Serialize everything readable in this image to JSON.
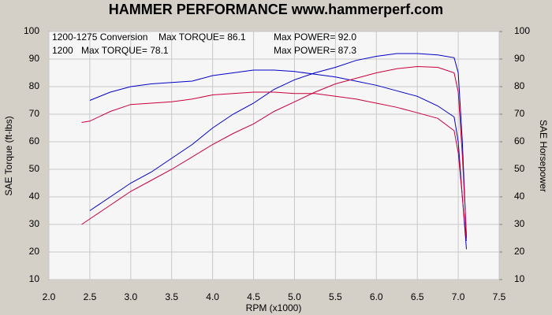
{
  "chart_data": {
    "type": "line",
    "title": "HAMMER PERFORMANCE www.hammerperf.com",
    "x_label": "RPM (x1000)",
    "y_label": "SAE Torque (ft-lbs)",
    "y2_label": "SAE Horsepower",
    "xlim": [
      2.0,
      7.5
    ],
    "xticks": [
      {
        "value": 2.0,
        "label": "2.0"
      },
      {
        "value": 2.5,
        "label": "2.5"
      },
      {
        "value": 3.0,
        "label": "3.0"
      },
      {
        "value": 3.5,
        "label": "3.5"
      },
      {
        "value": 4.0,
        "label": "4.0"
      },
      {
        "value": 4.5,
        "label": "4.5"
      },
      {
        "value": 5.0,
        "label": "5.0"
      },
      {
        "value": 5.5,
        "label": "5.5"
      },
      {
        "value": 6.0,
        "label": "6.0"
      },
      {
        "value": 6.5,
        "label": "6.5"
      },
      {
        "value": 7.0,
        "label": "7.0"
      },
      {
        "value": 7.5,
        "label": "7.5"
      }
    ],
    "ylim": [
      10,
      100
    ],
    "yticks": [
      10,
      20,
      30,
      40,
      50,
      60,
      70,
      80,
      90,
      100
    ],
    "y2lim": [
      10,
      100
    ],
    "y2ticks": [
      10,
      20,
      30,
      40,
      50,
      60,
      70,
      80,
      90,
      100
    ],
    "grid": true,
    "series": [
      {
        "name": "1200-1275 Conversion",
        "color": "#0000c8",
        "max_torque_label": "Max TORQUE= 86.1",
        "max_power_label": "Max POWER= 92.0",
        "x": [
          2.5,
          2.75,
          3.0,
          3.25,
          3.5,
          3.75,
          4.0,
          4.25,
          4.5,
          4.75,
          5.0,
          5.25,
          5.5,
          5.75,
          6.0,
          6.25,
          6.5,
          6.75,
          6.95,
          7.0,
          7.05,
          7.1
        ],
        "torque": [
          75,
          78,
          80,
          81,
          81.5,
          82,
          84,
          85,
          86,
          86,
          85.5,
          84.5,
          83.5,
          82,
          80.5,
          78.5,
          76.5,
          73,
          69,
          60,
          40,
          21
        ],
        "power": [
          35,
          40,
          45,
          49,
          54,
          59,
          65,
          70,
          74,
          79,
          82.5,
          85,
          87,
          89.5,
          91,
          92,
          92,
          91.5,
          90.5,
          85,
          60,
          25
        ],
        "power_axis": "y2"
      },
      {
        "name": "1200",
        "color": "#c8003c",
        "max_torque_label": "Max TORQUE= 78.1",
        "max_power_label": "Max POWER= 87.3",
        "x": [
          2.4,
          2.5,
          2.75,
          3.0,
          3.25,
          3.5,
          3.75,
          4.0,
          4.25,
          4.5,
          4.75,
          5.0,
          5.25,
          5.5,
          5.75,
          6.0,
          6.25,
          6.5,
          6.75,
          6.95,
          7.0,
          7.05,
          7.1
        ],
        "torque": [
          67,
          67.5,
          71,
          73.5,
          74,
          74.5,
          75.5,
          77,
          77.5,
          78,
          78,
          77.5,
          77.5,
          76.5,
          75.5,
          74,
          72.5,
          70.5,
          68.5,
          64,
          56,
          40,
          24
        ],
        "power": [
          30,
          32,
          37,
          42,
          46,
          50,
          54.5,
          59,
          63,
          66.5,
          71,
          74.5,
          78,
          81,
          83,
          85,
          86.5,
          87.3,
          87,
          85,
          78,
          55,
          26
        ],
        "power_axis": "y2"
      }
    ]
  }
}
